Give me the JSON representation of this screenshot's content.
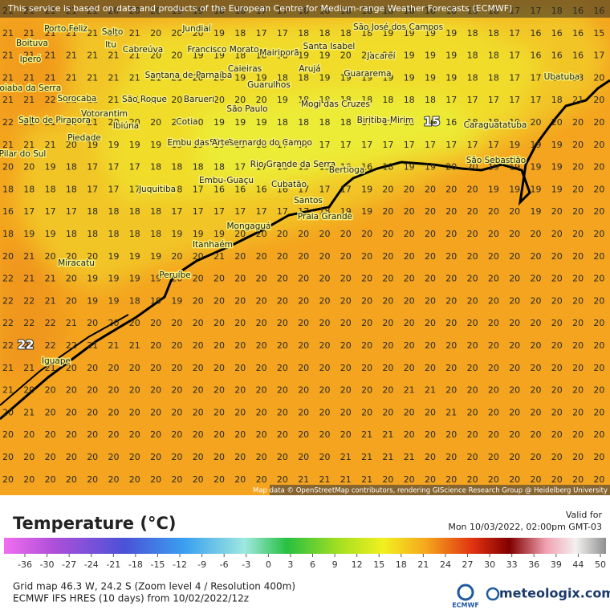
{
  "banner": "This service is based on data and products of the European Centre for Medium-range Weather Forecasts (ECMWF)",
  "attribution": "Map data © OpenStreetMap contributors, rendering GIScience Research Group @ Heidelberg University",
  "grid": [
    [
      21,
      21,
      21,
      21,
      21,
      20,
      20,
      20,
      19,
      19,
      18,
      18,
      17,
      17,
      18,
      18,
      18,
      18,
      18,
      18,
      18,
      18,
      18,
      18,
      17,
      17,
      18,
      16,
      16
    ],
    [
      21,
      21,
      21,
      21,
      21,
      21,
      21,
      20,
      20,
      20,
      19,
      18,
      17,
      17,
      18,
      18,
      18,
      18,
      19,
      19,
      19,
      19,
      18,
      18,
      17,
      16,
      16,
      16,
      15
    ],
    [
      21,
      21,
      21,
      21,
      21,
      21,
      21,
      20,
      20,
      19,
      19,
      18,
      18,
      18,
      19,
      19,
      20,
      20,
      20,
      19,
      19,
      19,
      18,
      18,
      17,
      16,
      16,
      16,
      17
    ],
    [
      21,
      21,
      21,
      21,
      21,
      21,
      21,
      21,
      21,
      20,
      20,
      19,
      19,
      18,
      18,
      19,
      19,
      19,
      19,
      19,
      19,
      19,
      18,
      18,
      17,
      17,
      16,
      18,
      20
    ],
    [
      21,
      21,
      22,
      21,
      21,
      21,
      21,
      20,
      20,
      20,
      20,
      20,
      20,
      19,
      18,
      18,
      18,
      18,
      18,
      18,
      18,
      17,
      17,
      17,
      17,
      17,
      18,
      21,
      20
    ],
    [
      22,
      22,
      21,
      21,
      21,
      20,
      20,
      20,
      20,
      20,
      19,
      19,
      19,
      18,
      18,
      18,
      18,
      17,
      17,
      18,
      16,
      16,
      18,
      18,
      19,
      20,
      20,
      20,
      20
    ],
    [
      21,
      21,
      21,
      20,
      19,
      19,
      19,
      19,
      19,
      19,
      19,
      19,
      18,
      17,
      17,
      17,
      17,
      17,
      17,
      17,
      17,
      17,
      17,
      17,
      19,
      19,
      19,
      20,
      20
    ],
    [
      20,
      20,
      19,
      18,
      17,
      17,
      17,
      18,
      18,
      18,
      18,
      17,
      17,
      16,
      15,
      15,
      16,
      16,
      18,
      19,
      19,
      20,
      20,
      19,
      19,
      19,
      19,
      20,
      20
    ],
    [
      18,
      18,
      18,
      18,
      17,
      17,
      17,
      18,
      18,
      17,
      16,
      16,
      16,
      16,
      17,
      17,
      17,
      19,
      20,
      20,
      20,
      20,
      20,
      19,
      19,
      19,
      19,
      20,
      20
    ],
    [
      16,
      17,
      17,
      17,
      18,
      18,
      18,
      18,
      17,
      17,
      17,
      17,
      17,
      17,
      17,
      18,
      19,
      19,
      20,
      20,
      20,
      20,
      20,
      20,
      20,
      19,
      20,
      20,
      20
    ],
    [
      18,
      19,
      19,
      18,
      18,
      18,
      18,
      18,
      19,
      19,
      19,
      20,
      20,
      20,
      20,
      20,
      20,
      20,
      20,
      20,
      20,
      20,
      20,
      20,
      20,
      20,
      20,
      20,
      20
    ],
    [
      20,
      21,
      20,
      20,
      20,
      19,
      19,
      19,
      20,
      20,
      21,
      20,
      20,
      20,
      20,
      20,
      20,
      20,
      20,
      20,
      20,
      20,
      20,
      20,
      20,
      20,
      20,
      20,
      20
    ],
    [
      22,
      21,
      21,
      20,
      19,
      19,
      19,
      19,
      20,
      20,
      20,
      20,
      20,
      20,
      20,
      20,
      20,
      20,
      20,
      20,
      20,
      20,
      20,
      20,
      20,
      20,
      20,
      20,
      20
    ],
    [
      22,
      22,
      21,
      20,
      19,
      19,
      18,
      19,
      19,
      20,
      20,
      20,
      20,
      20,
      20,
      20,
      20,
      20,
      20,
      20,
      20,
      20,
      20,
      20,
      20,
      20,
      20,
      20,
      20
    ],
    [
      22,
      22,
      22,
      21,
      20,
      20,
      20,
      20,
      20,
      20,
      20,
      20,
      20,
      20,
      20,
      20,
      20,
      20,
      20,
      20,
      20,
      20,
      20,
      20,
      20,
      20,
      20,
      20,
      20
    ],
    [
      22,
      22,
      22,
      22,
      21,
      21,
      21,
      20,
      20,
      20,
      20,
      20,
      20,
      20,
      20,
      20,
      20,
      20,
      20,
      20,
      20,
      20,
      20,
      20,
      20,
      20,
      20,
      20,
      20
    ],
    [
      21,
      21,
      21,
      20,
      20,
      20,
      20,
      20,
      20,
      20,
      20,
      20,
      20,
      20,
      20,
      20,
      20,
      20,
      20,
      20,
      20,
      20,
      20,
      20,
      20,
      20,
      20,
      20,
      20
    ],
    [
      21,
      20,
      20,
      20,
      20,
      20,
      20,
      20,
      20,
      20,
      20,
      20,
      20,
      20,
      20,
      20,
      20,
      20,
      20,
      21,
      21,
      20,
      20,
      20,
      20,
      20,
      20,
      20,
      20
    ],
    [
      20,
      21,
      20,
      20,
      20,
      20,
      20,
      20,
      20,
      20,
      20,
      20,
      20,
      20,
      20,
      20,
      20,
      20,
      20,
      20,
      20,
      21,
      20,
      20,
      20,
      20,
      20,
      20,
      20
    ],
    [
      20,
      20,
      20,
      20,
      20,
      20,
      20,
      20,
      20,
      20,
      20,
      20,
      20,
      20,
      20,
      20,
      20,
      21,
      21,
      20,
      20,
      20,
      20,
      20,
      20,
      20,
      20,
      20,
      20
    ],
    [
      20,
      20,
      20,
      20,
      20,
      20,
      20,
      20,
      20,
      20,
      20,
      20,
      20,
      20,
      20,
      20,
      21,
      21,
      21,
      21,
      20,
      20,
      20,
      20,
      20,
      20,
      20,
      20,
      20
    ],
    [
      20,
      20,
      20,
      20,
      20,
      20,
      20,
      20,
      20,
      20,
      20,
      20,
      20,
      20,
      21,
      21,
      21,
      21,
      20,
      20,
      20,
      20,
      20,
      20,
      20,
      20,
      20,
      20,
      20
    ]
  ],
  "extremes": [
    22,
    15
  ],
  "cities": [
    "Sorocaba",
    "São Paulo",
    "Guarulhos",
    "Santos",
    "Cubatão",
    "Praia Grande",
    "Mongaguá",
    "Itanhaém",
    "Peruíbe",
    "Iguape",
    "Miracatu",
    "Juquitiba",
    "Embu-Guaçu",
    "São Bernardo do Campo",
    "Rio Grande da Serra",
    "Bertioga",
    "Mogi das Cruzes",
    "Biritiba-Mirim",
    "Caraguatatuba",
    "São Sebastião",
    "Ubatuba",
    "Jacareí",
    "São José dos Campos",
    "Guararema",
    "Santa Isabel",
    "Arujá",
    "Mairiporã",
    "Caieiras",
    "Francisco Morato",
    "Jundiaí",
    "Cabreúva",
    "Itu",
    "Salto",
    "Porto Feliz",
    "Boituva",
    "Iperó",
    "Araçoiaba da Serra",
    "Salto de Pirapora",
    "Votorantim",
    "Ibiúna",
    "Piedade",
    "São Roque",
    "Pilar do Sul",
    "Barueri",
    "Santana de Parnaíba",
    "Cotia",
    "Embu das Artes"
  ],
  "legend": {
    "title": "Temperature (°C)",
    "ticks": [
      -36,
      -30,
      -27,
      -24,
      -21,
      -18,
      -15,
      -12,
      -9,
      -6,
      -3,
      0,
      3,
      6,
      9,
      12,
      15,
      18,
      21,
      24,
      27,
      30,
      33,
      36,
      39,
      44,
      50
    ]
  },
  "valid_label": "Valid for",
  "valid_time": "Mon 10/03/2022, 02:00pm GMT-03",
  "grid_info": "Grid map 46.3 W, 24.2 S (Zoom level 4 / Resolution 400m)",
  "model_info": "ECMWF IFS HRES (10 days) from 10/02/2022/12z",
  "ecmwf_logo": "ECMWF",
  "brand": "meteologix.com"
}
